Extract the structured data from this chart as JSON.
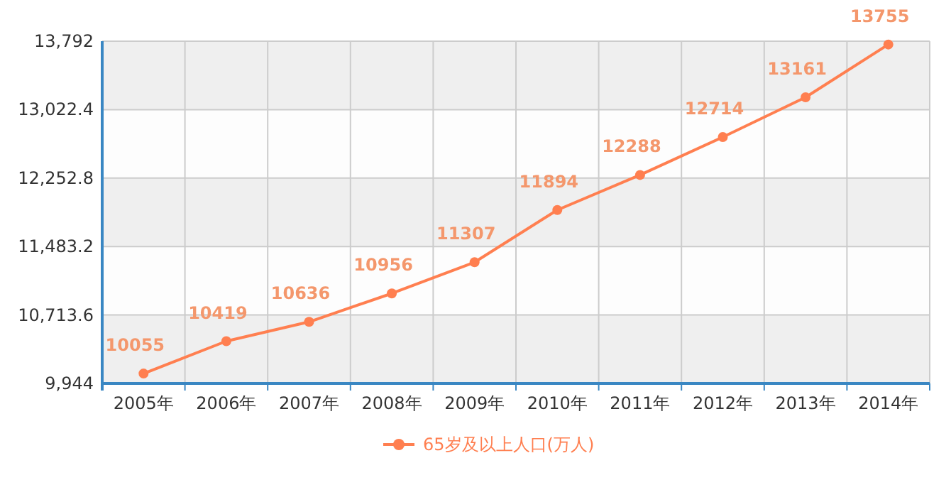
{
  "chart_data": {
    "type": "line",
    "categories": [
      "2005年",
      "2006年",
      "2007年",
      "2008年",
      "2009年",
      "2010年",
      "2011年",
      "2012年",
      "2013年",
      "2014年"
    ],
    "series": [
      {
        "name": "65岁及以上人口(万人)",
        "color": "#ff7f50",
        "values": [
          10055,
          10419,
          10636,
          10956,
          11307,
          11894,
          12288,
          12714,
          13161,
          13755
        ]
      }
    ],
    "ylim": [
      9944,
      13792
    ],
    "yticks": [
      {
        "value": 9944,
        "label": "9,944"
      },
      {
        "value": 10713.6,
        "label": "10,713.6"
      },
      {
        "value": 11483.2,
        "label": "11,483.2"
      },
      {
        "value": 12252.8,
        "label": "12,252.8"
      },
      {
        "value": 13022.4,
        "label": "13,022.4"
      },
      {
        "value": 13792,
        "label": "13,792"
      }
    ],
    "grid": true,
    "legend": "bottom",
    "marker": "circle",
    "line_style": "solid",
    "data_labels": true
  }
}
